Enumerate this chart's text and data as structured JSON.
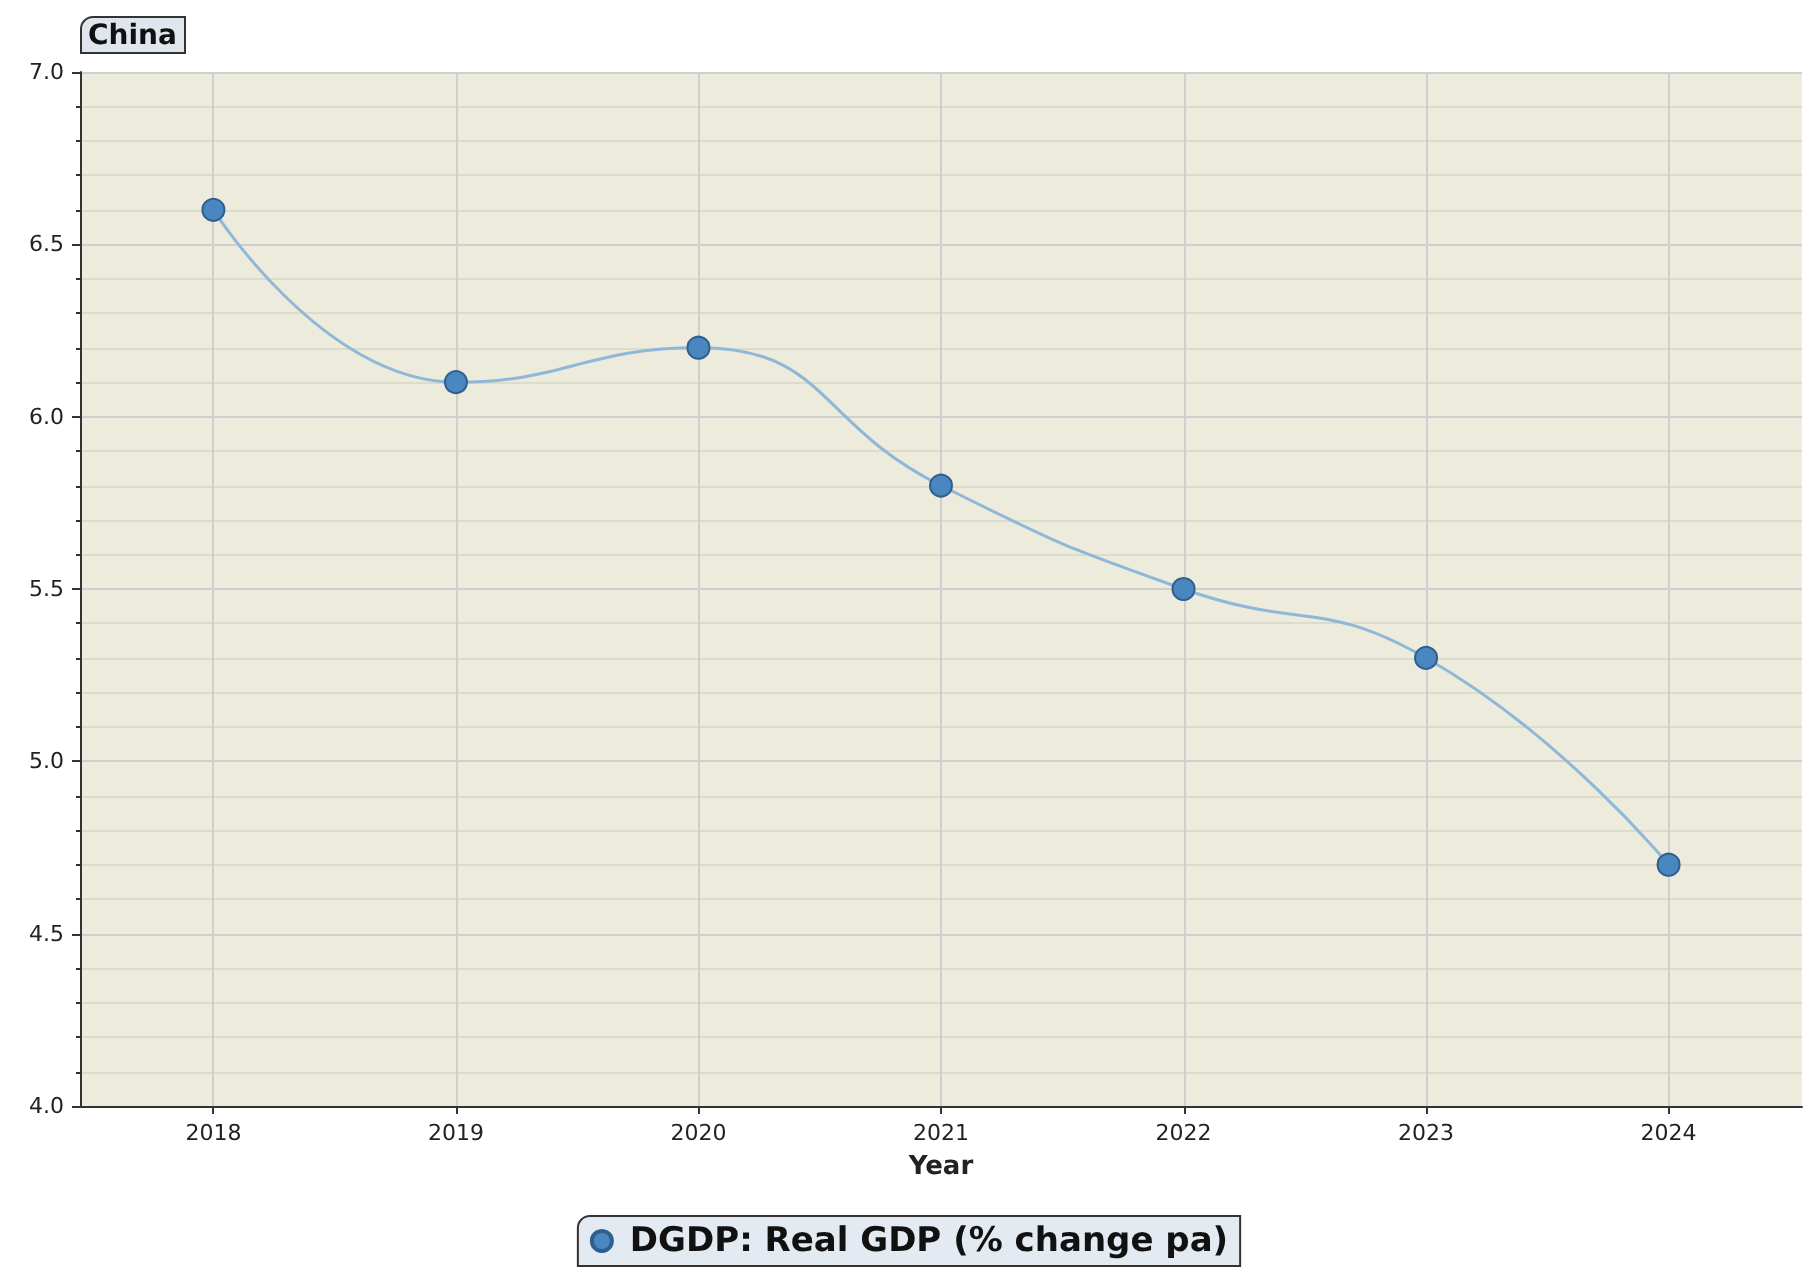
{
  "chart_data": {
    "type": "line",
    "title": "China",
    "xlabel": "Year",
    "x": [
      2018,
      2019,
      2020,
      2021,
      2022,
      2023,
      2024
    ],
    "xlim": [
      2017.45,
      2024.55
    ],
    "xticks": [
      2018,
      2019,
      2020,
      2021,
      2022,
      2023,
      2024
    ],
    "ylim": [
      4,
      7
    ],
    "yticks": [
      {
        "value": 4,
        "label": "4.0"
      },
      {
        "value": 4.5,
        "label": "4.5"
      },
      {
        "value": 5,
        "label": "5.0"
      },
      {
        "value": 5.5,
        "label": "5.5"
      },
      {
        "value": 6,
        "label": "6.0"
      },
      {
        "value": 6.5,
        "label": "6.5"
      },
      {
        "value": 7,
        "label": "7.0"
      }
    ],
    "series": [
      {
        "name": "DGDP: Real GDP (% change pa)",
        "color": "#4a86c0",
        "values": [
          6.6,
          6.1,
          6.2,
          5.8,
          5.5,
          5.3,
          4.7
        ]
      }
    ],
    "grid": true,
    "legend": "bottom",
    "marker": "circle",
    "line_style": "solid"
  }
}
